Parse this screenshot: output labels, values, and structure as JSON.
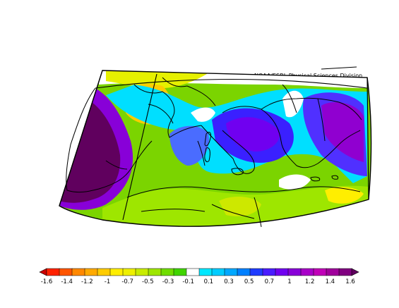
{
  "figure": {
    "credit": "NOAA/ESRL Physical Sciences Division"
  },
  "colorbar": {
    "labels": [
      "-1.6",
      "-1.4",
      "-1.2",
      "-1",
      "-0.7",
      "-0.5",
      "-0.3",
      "-0.1",
      "0.1",
      "0.3",
      "0.5",
      "0.7",
      "1",
      "1.2",
      "1.4",
      "1.6"
    ],
    "colors": [
      "#cc0000",
      "#ff2200",
      "#ff5500",
      "#ff8800",
      "#ffaa00",
      "#ffcc00",
      "#ffee00",
      "#eef000",
      "#c8ec00",
      "#9ee600",
      "#70dd00",
      "#40d400",
      "#ffffff",
      "#00e8ff",
      "#00ccff",
      "#00a8ff",
      "#0080ff",
      "#1f3cff",
      "#4a1cff",
      "#7000f0",
      "#8800d8",
      "#a800c8",
      "#c000b8",
      "#a0009c",
      "#800080",
      "#60005e"
    ]
  }
}
